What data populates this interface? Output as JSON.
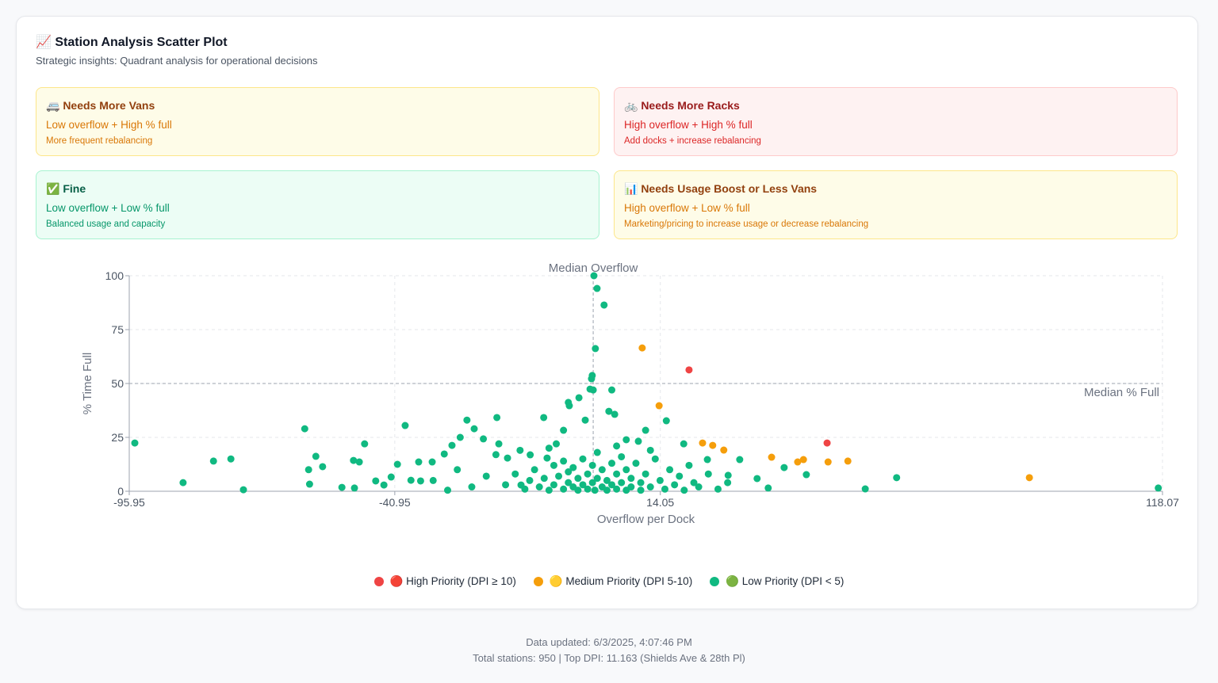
{
  "header": {
    "title": "📈 Station Analysis Scatter Plot",
    "subtitle": "Strategic insights: Quadrant analysis for operational decisions"
  },
  "quadrants": [
    {
      "title": "🚐 Needs More Vans",
      "condition": "Low overflow + High % full",
      "action": "More frequent rebalancing",
      "tone": "yellow"
    },
    {
      "title": "🚲 Needs More Racks",
      "condition": "High overflow + High % full",
      "action": "Add docks + increase rebalancing",
      "tone": "red"
    },
    {
      "title": "✅ Fine",
      "condition": "Low overflow + Low % full",
      "action": "Balanced usage and capacity",
      "tone": "green"
    },
    {
      "title": "📊 Needs Usage Boost or Less Vans",
      "condition": "High overflow + Low % full",
      "action": "Marketing/pricing to increase usage or decrease rebalancing",
      "tone": "yellow"
    }
  ],
  "chart_data": {
    "type": "scatter",
    "x_label": "Overflow per Dock",
    "y_label": "% Time Full",
    "xlim": [
      -95.95,
      118.07
    ],
    "xticks": [
      -95.95,
      -40.95,
      14.05,
      118.07
    ],
    "ylim": [
      0,
      100
    ],
    "yticks": [
      0,
      25,
      50,
      75,
      100
    ],
    "grid": true,
    "legend": "bottom",
    "median_overflow": {
      "label": "Median Overflow",
      "value": 0.15
    },
    "median_full": {
      "label": "Median % Full",
      "value": 50
    },
    "series": [
      {
        "name": "🔴 High Priority (DPI ≥ 10)",
        "color": "#ef4444",
        "x": [
          20.0,
          48.6
        ],
        "y": [
          56.3,
          22.4
        ]
      },
      {
        "name": "🟡 Medium Priority (DPI 5-10)",
        "color": "#f59e0b",
        "x": [
          10.3,
          13.8,
          22.8,
          24.9,
          27.2,
          37.1,
          42.5,
          43.7,
          48.8,
          52.9,
          90.5
        ],
        "y": [
          66.5,
          39.7,
          22.4,
          21.3,
          19.1,
          15.8,
          13.6,
          14.7,
          13.6,
          14.0,
          6.3
        ]
      },
      {
        "name": "🟢 Low Priority (DPI < 5)",
        "color": "#10b981",
        "x": [
          -94.8,
          -84.8,
          -78.5,
          -74.9,
          -72.3,
          -59.6,
          -58.8,
          -58.6,
          -57.3,
          -55.9,
          -51.9,
          -49.5,
          -49.3,
          -48.3,
          -47.2,
          -44.9,
          -43.2,
          -41.7,
          -40.4,
          -38.8,
          -37.6,
          -36,
          -35.6,
          -33.2,
          -30.7,
          -29.1,
          -27.4,
          -26,
          -24.5,
          -22.6,
          -19.8,
          -19.4,
          -17.6,
          -14.8,
          -12.9,
          -10.1,
          -9.4,
          -7.5,
          -6,
          -5,
          -4.8,
          -2.8,
          -1.5,
          -0.5,
          -0.2,
          -0.05,
          0.15,
          0.3,
          0.6,
          0.95,
          2.4,
          4,
          3.4,
          4.6,
          7,
          9.5,
          11,
          15.3,
          18.9,
          23.8,
          28.1,
          30.5,
          34.1,
          36.4,
          39.7,
          44.3,
          56.5,
          63,
          117.2,
          -18,
          -16,
          -14,
          -13,
          -12,
          -11,
          -10,
          -9,
          -8,
          -8,
          -7,
          -6,
          -6,
          -5,
          -5,
          -4,
          -4,
          -3,
          -3,
          -2,
          -2,
          -1,
          -1,
          0,
          0,
          0.5,
          1,
          1,
          2,
          2,
          3,
          3,
          4,
          4,
          5,
          5,
          6,
          6,
          7,
          7,
          8,
          8,
          9,
          10,
          10,
          11,
          12,
          13,
          14,
          15,
          16,
          17,
          18,
          19,
          20,
          21,
          22,
          24,
          -22,
          -25,
          -28,
          -30,
          -33,
          -20,
          -15,
          26,
          28,
          12,
          -9,
          5
        ],
        "y": [
          22.4,
          4,
          14,
          15,
          0.7,
          29,
          10,
          3.3,
          16.2,
          11.4,
          1.8,
          14.3,
          1.5,
          13.6,
          22,
          4.8,
          2.9,
          6.6,
          12.5,
          30.5,
          5.1,
          13.6,
          4.8,
          13.6,
          17.3,
          21.3,
          25,
          33,
          29,
          24.3,
          34.2,
          22,
          15.4,
          2.9,
          16.9,
          34.2,
          15.4,
          22,
          28.3,
          41.2,
          39.7,
          43.4,
          33,
          47.4,
          52.2,
          53.7,
          47,
          100,
          66.2,
          94.1,
          86.4,
          47,
          37.1,
          35.7,
          23.9,
          23.2,
          28.3,
          32.7,
          22,
          14.7,
          7.4,
          14.7,
          5.9,
          1.5,
          11,
          7.7,
          1.1,
          6.3,
          1.5,
          3,
          8,
          1,
          5,
          10,
          2,
          6,
          0.5,
          12,
          3,
          7,
          1,
          14,
          4,
          9,
          2,
          11,
          0.5,
          6,
          3,
          15,
          1,
          8,
          4,
          12,
          0.5,
          6,
          18,
          2,
          10,
          0.5,
          5,
          13,
          3,
          8,
          1,
          16,
          4,
          0.5,
          10,
          6,
          2,
          13,
          4,
          0.5,
          8,
          2,
          15,
          5,
          1,
          10,
          3,
          7,
          0.5,
          12,
          4,
          2,
          8,
          7,
          2,
          10,
          0.5,
          5,
          17,
          19,
          1,
          4,
          19,
          20,
          21
        ]
      }
    ]
  },
  "footer": {
    "updated": "Data updated: 6/3/2025, 4:07:46 PM",
    "summary": "Total stations: 950 | Top DPI: 11.163 (Shields Ave & 28th Pl)"
  }
}
